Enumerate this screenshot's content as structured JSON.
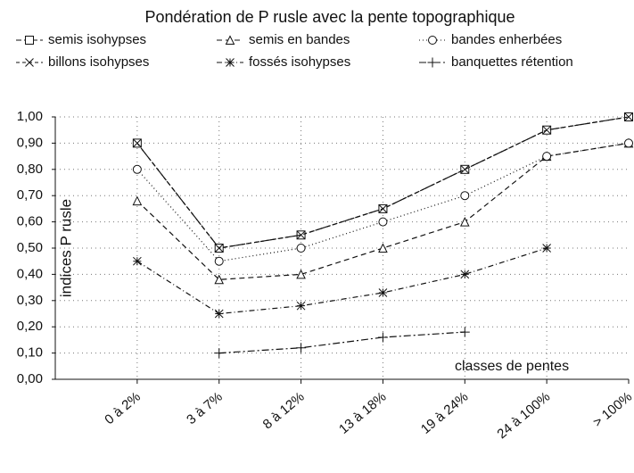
{
  "chart_data": {
    "type": "line",
    "title": "Pondération de P rusle avec la pente topographique",
    "y_label": "indices  P rusle",
    "annotation": "classes de pentes",
    "categories": [
      "0 à 2%",
      "3 à 7%",
      "8 à 12%",
      "13 à 18%",
      "19 à 24%",
      "24 à 100%",
      "> 100%"
    ],
    "series": [
      {
        "name": "semis  isohypses",
        "color": "#111111",
        "marker": "square",
        "dash": "6 3",
        "values": [
          0.9,
          0.5,
          0.55,
          0.65,
          0.8,
          0.95,
          1.0
        ]
      },
      {
        "name": "semis en bandes",
        "color": "#111111",
        "marker": "triangle",
        "dash": "6 4",
        "values": [
          0.68,
          0.38,
          0.4,
          0.5,
          0.6,
          0.85,
          0.9
        ]
      },
      {
        "name": "bandes enherbées",
        "color": "#111111",
        "marker": "circle",
        "dash": "1 3",
        "values": [
          0.8,
          0.45,
          0.5,
          0.6,
          0.7,
          0.85,
          0.9
        ]
      },
      {
        "name": "billons isohypses",
        "color": "#111111",
        "marker": "x",
        "dash": "4 3",
        "values": [
          0.9,
          0.5,
          0.55,
          0.65,
          0.8,
          0.95,
          1.0
        ]
      },
      {
        "name": "fossés isohypses",
        "color": "#111111",
        "marker": "star",
        "dash": "6 3 1 3",
        "values": [
          0.45,
          0.25,
          0.28,
          0.33,
          0.4,
          0.5,
          null
        ]
      },
      {
        "name": "banquettes rétention",
        "color": "#111111",
        "marker": "plus",
        "dash": "8 3 2 3",
        "values": [
          null,
          0.1,
          0.12,
          0.16,
          0.18,
          null,
          null
        ]
      }
    ],
    "ylim": [
      0,
      1
    ],
    "yticks": [
      {
        "value": 0,
        "label": "0,00"
      },
      {
        "value": 0.1,
        "label": "0,10"
      },
      {
        "value": 0.2,
        "label": "0,20"
      },
      {
        "value": 0.3,
        "label": "0,30"
      },
      {
        "value": 0.4,
        "label": "0,40"
      },
      {
        "value": 0.5,
        "label": "0,50"
      },
      {
        "value": 0.6,
        "label": "0,60"
      },
      {
        "value": 0.7,
        "label": "0,70"
      },
      {
        "value": 0.8,
        "label": "0,80"
      },
      {
        "value": 0.9,
        "label": "0,90"
      },
      {
        "value": 1,
        "label": "1,00"
      }
    ],
    "grid": true
  }
}
